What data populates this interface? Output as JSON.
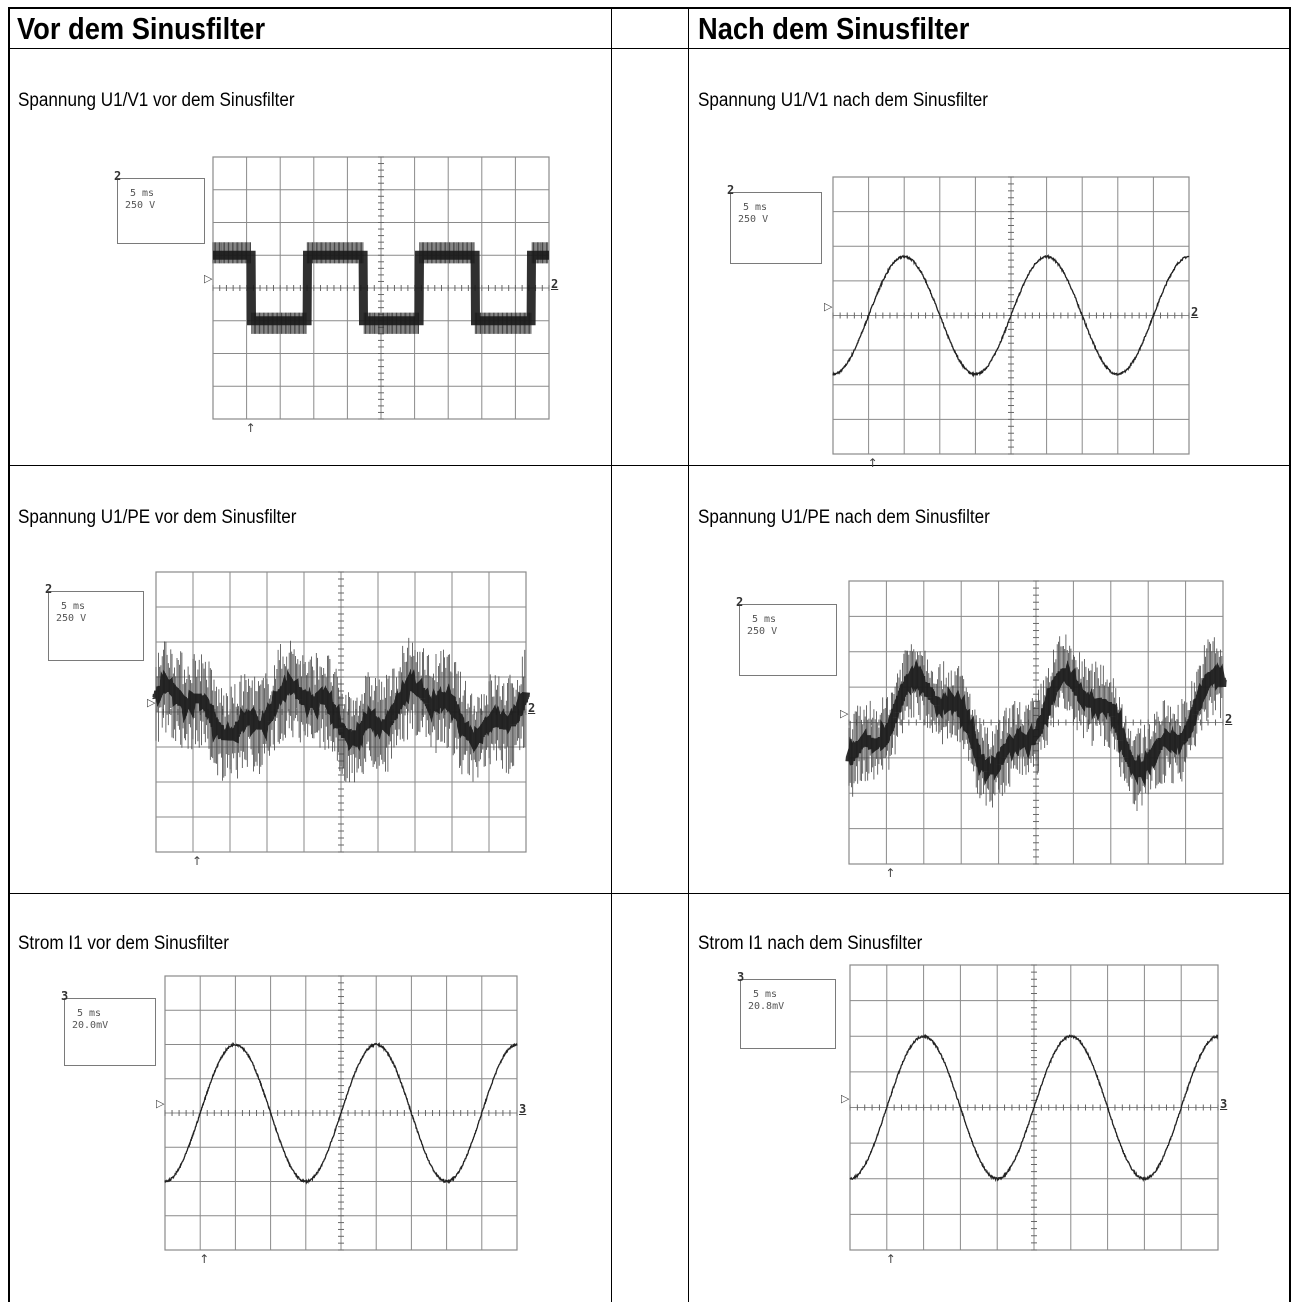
{
  "headers": {
    "left": "Vor dem Sinusfilter",
    "right": "Nach dem Sinusfilter"
  },
  "colors": {
    "trace": "#222222",
    "grid": "#8a8a8a",
    "border": "#000000"
  },
  "chart_data": [
    {
      "type": "line",
      "id": "u1v1-vor",
      "title": "Spannung U1/V1 vor dem Sinusfilter",
      "channel": "2",
      "timebase": "5 ms",
      "scale": "250 V",
      "waveform": "pwm-square",
      "amplitude_div": 1.0,
      "spike_div": 1.4,
      "periods": 3.0,
      "phase": 0.0,
      "grid": {
        "x_divisions": 10,
        "y_divisions": 8
      }
    },
    {
      "type": "line",
      "id": "u1v1-nach",
      "title": "Spannung U1/V1 nach dem Sinusfilter",
      "channel": "2",
      "timebase": "5 ms",
      "scale": "250 V",
      "waveform": "sine",
      "amplitude_div": 1.7,
      "periods": 2.5,
      "phase": -0.25,
      "grid": {
        "x_divisions": 10,
        "y_divisions": 8
      }
    },
    {
      "type": "line",
      "id": "u1pe-vor",
      "title": "Spannung U1/PE vor dem Sinusfilter",
      "channel": "2",
      "timebase": "5 ms",
      "scale": "250 V",
      "waveform": "noisy-common-mode",
      "amplitude_div": 0.8,
      "noise_div": 1.2,
      "periods": 3.0,
      "grid": {
        "x_divisions": 10,
        "y_divisions": 8
      }
    },
    {
      "type": "line",
      "id": "u1pe-nach",
      "title": "Spannung U1/PE nach dem Sinusfilter",
      "channel": "2",
      "timebase": "5 ms",
      "scale": "250 V",
      "waveform": "noisy-sine",
      "amplitude_div": 1.1,
      "noise_div": 1.0,
      "periods": 2.5,
      "phase": -0.25,
      "grid": {
        "x_divisions": 10,
        "y_divisions": 8
      }
    },
    {
      "type": "line",
      "id": "i1-vor",
      "title": "Strom I1 vor dem Sinusfilter",
      "channel": "3",
      "timebase": "5 ms",
      "scale": "20.0mV",
      "waveform": "sine",
      "amplitude_div": 2.0,
      "periods": 2.5,
      "phase": -0.25,
      "grid": {
        "x_divisions": 10,
        "y_divisions": 8
      }
    },
    {
      "type": "line",
      "id": "i1-nach",
      "title": "Strom I1 nach dem Sinusfilter",
      "channel": "3",
      "timebase": "5 ms",
      "scale": "20.8mV",
      "waveform": "sine",
      "amplitude_div": 2.0,
      "periods": 2.5,
      "phase": -0.25,
      "grid": {
        "x_divisions": 10,
        "y_divisions": 8
      }
    }
  ]
}
